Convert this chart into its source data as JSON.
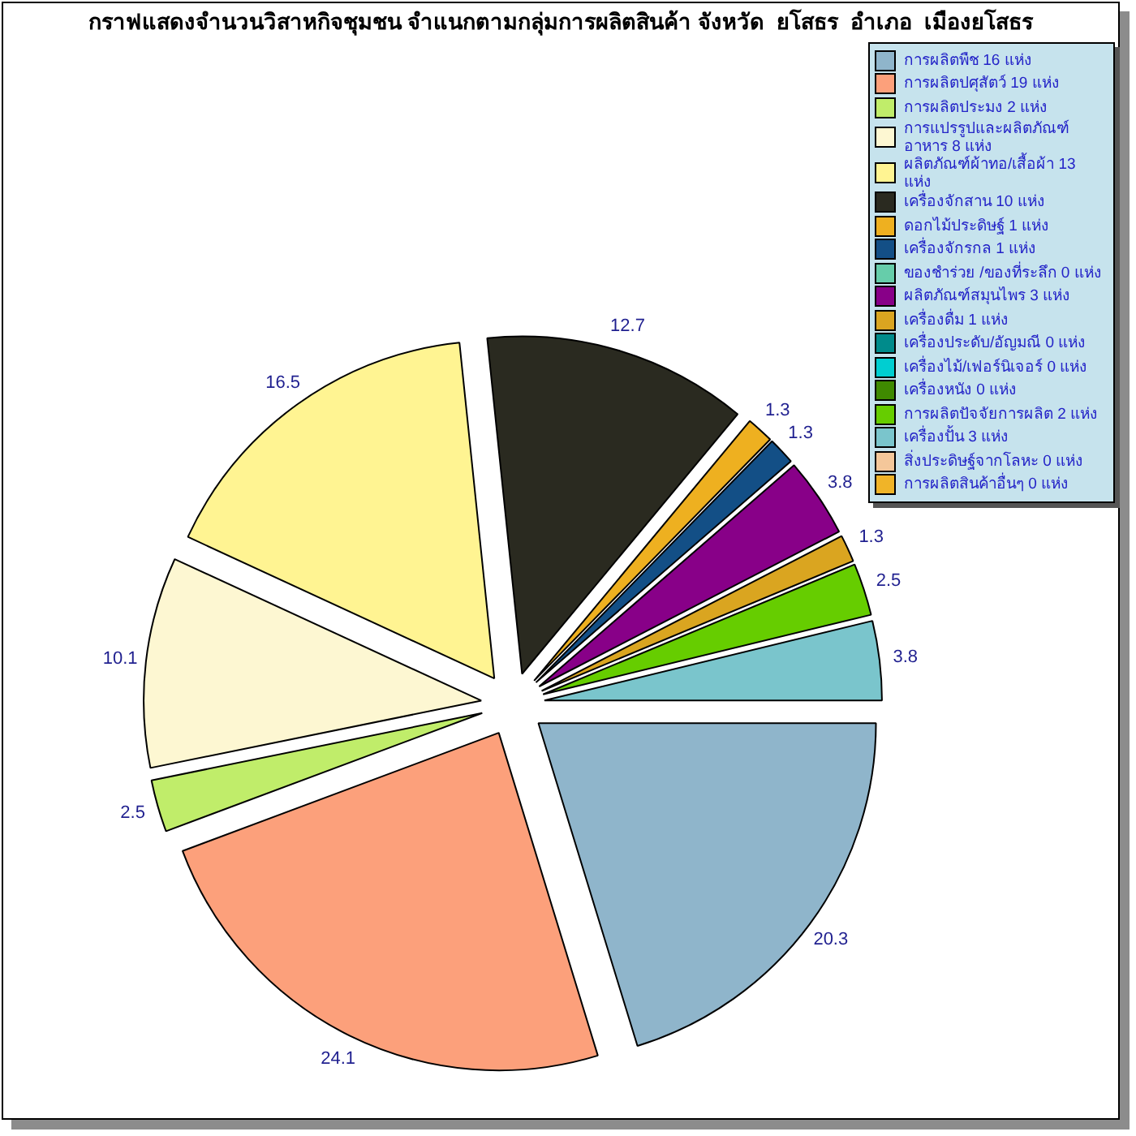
{
  "chart_data": {
    "type": "pie",
    "title": "กราฟแสดงจำนวนวิสาหกิจชุมชน จำแนกตามกลุ่มการผลิตสินค้า จังหวัด  ยโสธร  อำเภอ  เมืองยโสธร",
    "categories": [
      "การผลิตพืช 16 แห่ง",
      "การผลิตปศุสัตว์ 19 แห่ง",
      "การผลิตประมง 2 แห่ง",
      "การแปรรูปและผลิตภัณฑ์อาหาร 8 แห่ง",
      "ผลิตภัณฑ์ผ้าทอ/เสื้อผ้า 13 แห่ง",
      "เครื่องจักสาน 10 แห่ง",
      "ดอกไม้ประดิษฐ์ 1 แห่ง",
      "เครื่องจักรกล 1 แห่ง",
      "ของชำร่วย /ของที่ระลึก 0 แห่ง",
      "ผลิตภัณฑ์สมุนไพร 3 แห่ง",
      "เครื่องดื่ม 1 แห่ง",
      "เครื่องประดับ/อัญมณี 0 แห่ง",
      "เครื่องไม้/เฟอร์นิเจอร์ 0 แห่ง",
      "เครื่องหนัง 0 แห่ง",
      "การผลิตปัจจัยการผลิต 2 แห่ง",
      "เครื่องปั้น 3 แห่ง",
      "สิ่งประดิษฐ์จากโลหะ 0 แห่ง",
      "การผลิตสินค้าอื่นๆ 0 แห่ง"
    ],
    "values": [
      20.3,
      24.1,
      2.5,
      10.1,
      16.5,
      12.7,
      1.3,
      1.3,
      0,
      3.8,
      1.3,
      0,
      0,
      0,
      2.5,
      3.8,
      0,
      0
    ],
    "value_labels": [
      "20.3",
      "24.1",
      "2.5",
      "10.1",
      "16.5",
      "12.7",
      "1.3",
      "1.3",
      null,
      "3.8",
      "1.3",
      null,
      null,
      null,
      "2.5",
      "3.8",
      null,
      null
    ],
    "colors": [
      "#8fb5cb",
      "#fca07b",
      "#c0ed6a",
      "#fdf7d2",
      "#fff492",
      "#2a2a20",
      "#eeb020",
      "#134f86",
      "#66cdaa",
      "#880088",
      "#daa520",
      "#008b8b",
      "#00ced1",
      "#3f8a00",
      "#66cd00",
      "#7ac5cc",
      "#f4c79a",
      "#f0b428"
    ],
    "legend": "top right"
  }
}
